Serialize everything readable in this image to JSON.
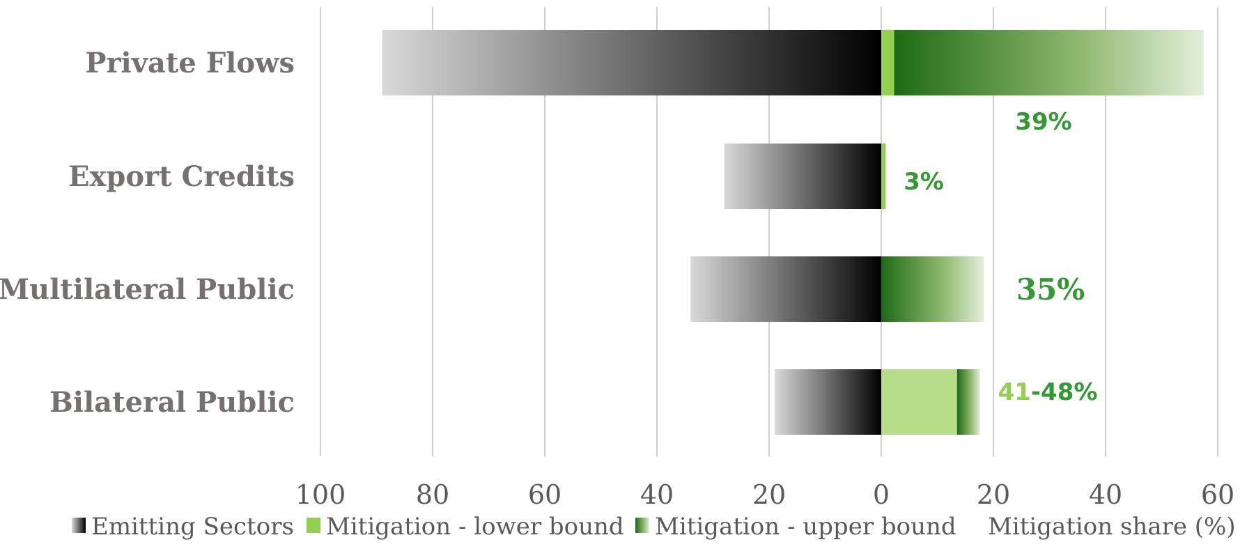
{
  "chart_data": {
    "type": "bar",
    "orientation": "horizontal-diverging",
    "categories": [
      "Private Flows",
      "Export Credits",
      "Multilateral Public",
      "Bilateral Public"
    ],
    "series": [
      {
        "name": "Emitting Sectors",
        "direction": "left",
        "values": [
          89,
          28,
          34,
          19
        ]
      },
      {
        "name": "Mitigation - lower bound",
        "direction": "right",
        "values": [
          2.3,
          0.8,
          0,
          13.5
        ]
      },
      {
        "name": "Mitigation - upper bound",
        "direction": "right",
        "values": [
          57.5,
          0.8,
          18.3,
          17.6
        ]
      }
    ],
    "mitigation_share": [
      {
        "parts": [
          {
            "text": "39%",
            "color": "#339933"
          }
        ]
      },
      {
        "parts": [
          {
            "text": "3%",
            "color": "#339933"
          }
        ]
      },
      {
        "parts": [
          {
            "text": "35%",
            "color": "#339933"
          }
        ],
        "serif": true
      },
      {
        "parts": [
          {
            "text": "41",
            "color": "#92D050"
          },
          {
            "text": "-",
            "color": "#339933"
          },
          {
            "text": "48%",
            "color": "#339933"
          }
        ]
      }
    ],
    "x_ticks": [
      "100",
      "80",
      "60",
      "40",
      "20",
      "0",
      "20",
      "40",
      "60"
    ],
    "xlim_left": 100,
    "xlim_right": 60,
    "grid": true,
    "legend": {
      "position": "bottom",
      "entries": [
        "Emitting Sectors",
        "Mitigation - lower bound",
        "Mitigation - upper bound",
        "Mitigation share (%)"
      ]
    },
    "colors": {
      "emitting_dark": "#000000",
      "emitting_light": "#d9d9d9",
      "mitigation_lower": "#92D050",
      "mitigation_lower_light": "#B5DD8A",
      "mitigation_upper_dark": "#1E6B14",
      "mitigation_upper_light": "#E2EFDA",
      "share_text": "#339933",
      "category_text": "#767171",
      "axis_text": "#595959",
      "grid": "#bfbfbf"
    }
  }
}
